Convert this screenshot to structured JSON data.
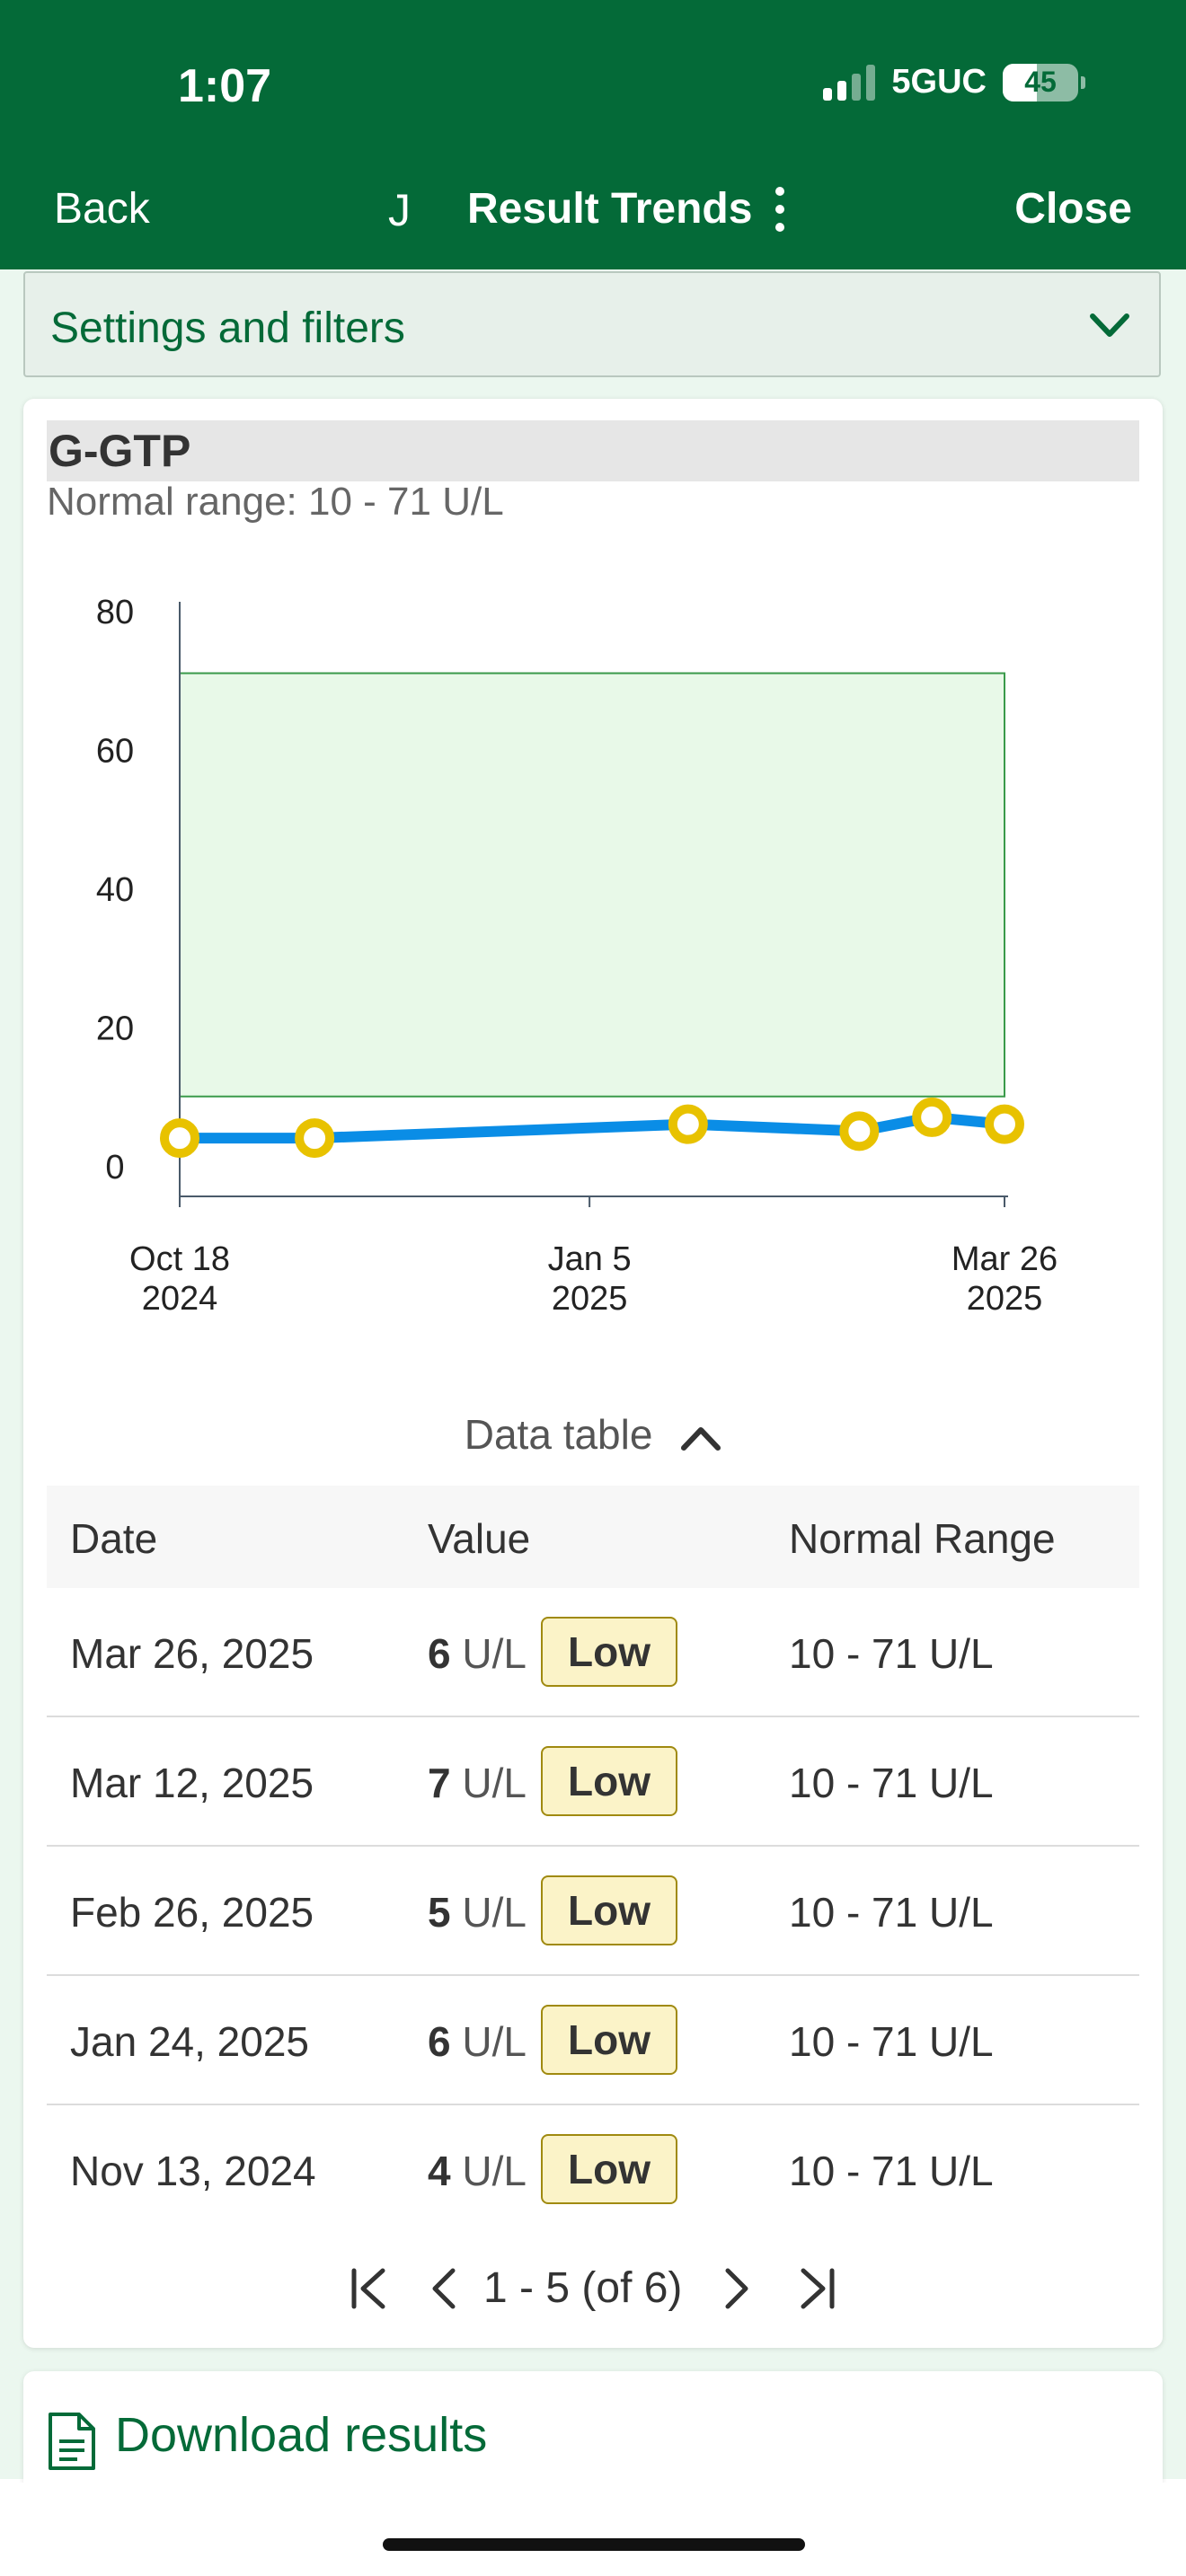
{
  "status_bar": {
    "time": "1:07",
    "network": "5GUC",
    "battery": "45",
    "battery_level": 0.45
  },
  "nav": {
    "back": "Back",
    "initial": "J",
    "title": "Result Trends",
    "close": "Close"
  },
  "filters": {
    "label": "Settings and filters"
  },
  "test": {
    "name": "G-GTP",
    "normal_range": "Normal range: 10 - 71 U/L"
  },
  "chart_data": {
    "type": "line",
    "x": [
      "2024-10-18",
      "2024-11-13",
      "2025-01-24",
      "2025-02-26",
      "2025-03-12",
      "2025-03-26"
    ],
    "values": [
      4,
      4,
      6,
      5,
      7,
      6
    ],
    "normal_band": [
      10,
      71
    ],
    "ylim": [
      0,
      80
    ],
    "y_ticks": [
      "0",
      "20",
      "40",
      "60",
      "80"
    ],
    "x_ticks": [
      {
        "date": "2024-10-18",
        "line1": "Oct 18",
        "line2": "2024"
      },
      {
        "date": "2025-01-05",
        "line1": "Jan 5",
        "line2": "2025"
      },
      {
        "date": "2025-03-26",
        "line1": "Mar 26",
        "line2": "2025"
      }
    ],
    "colors": {
      "line": "#0a8de6",
      "point_fill": "#ffffff",
      "point_ring": "#e8c200",
      "band_fill": "#e8f9e8",
      "band_stroke": "#3a9a4a",
      "axis": "#4a5a6a"
    }
  },
  "data_table": {
    "toggle_label": "Data table",
    "headers": {
      "date": "Date",
      "value": "Value",
      "range": "Normal Range"
    },
    "rows": [
      {
        "date": "Mar 26, 2025",
        "value": "6",
        "unit": "U/L",
        "flag": "Low",
        "range": "10 - 71 U/L"
      },
      {
        "date": "Mar 12, 2025",
        "value": "7",
        "unit": "U/L",
        "flag": "Low",
        "range": "10 - 71 U/L"
      },
      {
        "date": "Feb 26, 2025",
        "value": "5",
        "unit": "U/L",
        "flag": "Low",
        "range": "10 - 71 U/L"
      },
      {
        "date": "Jan 24, 2025",
        "value": "6",
        "unit": "U/L",
        "flag": "Low",
        "range": "10 - 71 U/L"
      },
      {
        "date": "Nov 13, 2024",
        "value": "4",
        "unit": "U/L",
        "flag": "Low",
        "range": "10 - 71 U/L"
      }
    ]
  },
  "pagination": {
    "label": "1 - 5 (of 6)"
  },
  "download": {
    "label": "Download results"
  }
}
